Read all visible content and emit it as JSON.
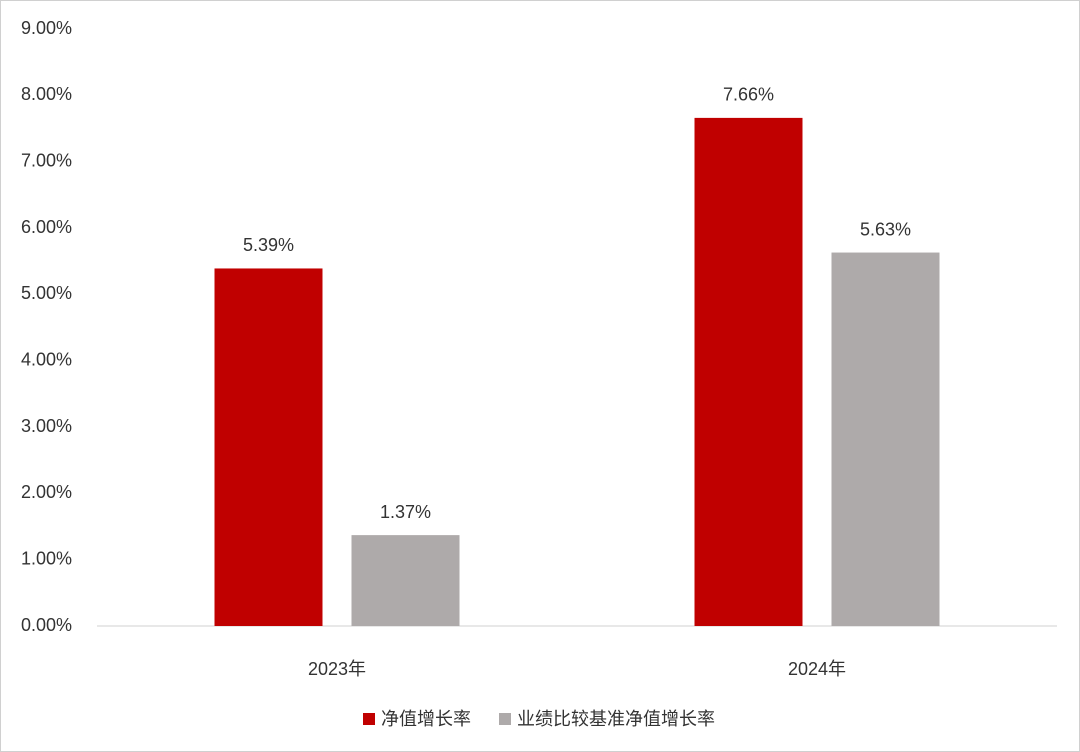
{
  "chart_data": {
    "type": "bar",
    "categories": [
      "2023年",
      "2024年"
    ],
    "series": [
      {
        "name": "净值增长率",
        "color": "#c00000",
        "values": [
          5.39,
          7.66
        ],
        "value_labels": [
          "5.39%",
          "7.66%"
        ]
      },
      {
        "name": "业绩比较基准净值增长率",
        "color": "#aeaaaa",
        "values": [
          1.37,
          5.63
        ],
        "value_labels": [
          "1.37%",
          "5.63%"
        ]
      }
    ],
    "ylim": [
      0,
      9
    ],
    "yticks": [
      {
        "value": 0,
        "label": "0.00%"
      },
      {
        "value": 1,
        "label": "1.00%"
      },
      {
        "value": 2,
        "label": "2.00%"
      },
      {
        "value": 3,
        "label": "3.00%"
      },
      {
        "value": 4,
        "label": "4.00%"
      },
      {
        "value": 5,
        "label": "5.00%"
      },
      {
        "value": 6,
        "label": "6.00%"
      },
      {
        "value": 7,
        "label": "7.00%"
      },
      {
        "value": 8,
        "label": "8.00%"
      },
      {
        "value": 9,
        "label": "9.00%"
      }
    ],
    "grid": false,
    "legend": "bottom"
  }
}
